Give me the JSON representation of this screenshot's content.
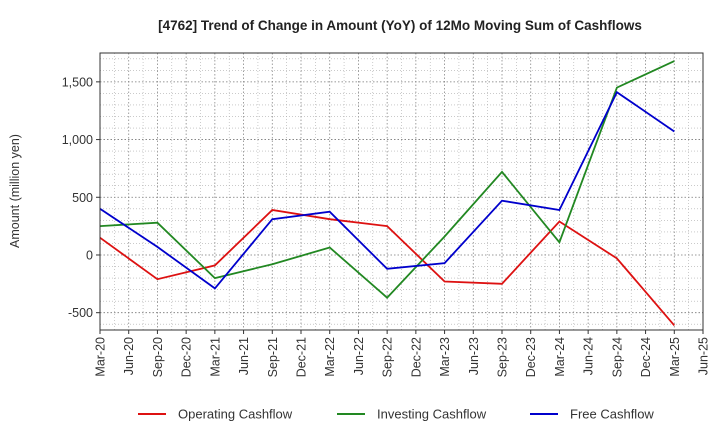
{
  "chart_data": {
    "type": "line",
    "title": "[4762]  Trend of Change in Amount (YoY) of 12Mo Moving Sum of Cashflows",
    "xlabel": "",
    "ylabel": "Amount (million yen)",
    "ylim": [
      -650,
      1750
    ],
    "yticks": [
      -500,
      0,
      500,
      1000,
      1500
    ],
    "ytick_labels": [
      "-500",
      "0",
      "500",
      "1,000",
      "1,500"
    ],
    "categories": [
      "Mar-20",
      "Jun-20",
      "Sep-20",
      "Dec-20",
      "Mar-21",
      "Jun-21",
      "Sep-21",
      "Dec-21",
      "Mar-22",
      "Jun-22",
      "Sep-22",
      "Dec-22",
      "Mar-23",
      "Jun-23",
      "Sep-23",
      "Dec-23",
      "Mar-24",
      "Jun-24",
      "Sep-24",
      "Dec-24",
      "Mar-25",
      "Jun-25"
    ],
    "grid": true,
    "legend_position": "bottom",
    "series": [
      {
        "name": "Operating Cashflow",
        "color": "#dd1111",
        "values": [
          150,
          null,
          -210,
          null,
          -90,
          null,
          390,
          null,
          310,
          null,
          250,
          null,
          -230,
          null,
          -250,
          null,
          290,
          null,
          -30,
          null,
          -610,
          null
        ]
      },
      {
        "name": "Investing Cashflow",
        "color": "#228822",
        "values": [
          250,
          null,
          280,
          null,
          -200,
          null,
          -80,
          null,
          65,
          null,
          -370,
          null,
          160,
          null,
          720,
          null,
          110,
          null,
          1450,
          null,
          1680,
          null
        ]
      },
      {
        "name": "Free Cashflow",
        "color": "#0000cc",
        "values": [
          400,
          null,
          70,
          null,
          -290,
          null,
          310,
          null,
          375,
          null,
          -120,
          null,
          -70,
          null,
          470,
          null,
          390,
          null,
          1410,
          null,
          1070,
          null
        ]
      }
    ]
  }
}
